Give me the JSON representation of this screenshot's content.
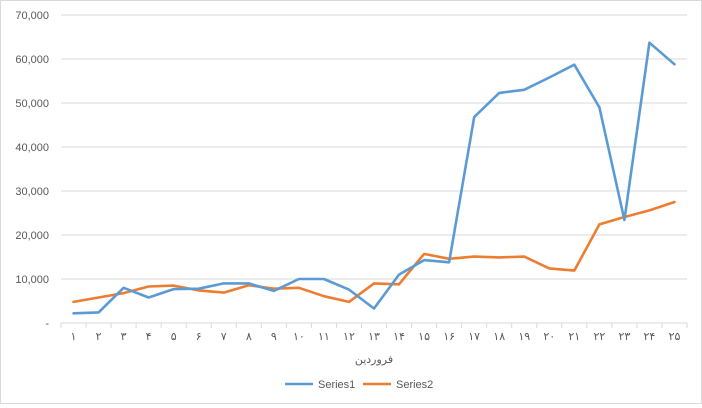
{
  "chart_data": {
    "type": "line",
    "title": "",
    "xlabel": "فروردین",
    "ylabel": "",
    "ylim": [
      0,
      70000
    ],
    "yticks": [
      0,
      10000,
      20000,
      30000,
      40000,
      50000,
      60000,
      70000
    ],
    "ytick_labels": [
      "-",
      "10,000",
      "20,000",
      "30,000",
      "40,000",
      "50,000",
      "60,000",
      "70,000"
    ],
    "categories": [
      "۱",
      "۲",
      "۳",
      "۴",
      "۵",
      "۶",
      "۷",
      "۸",
      "۹",
      "۱۰",
      "۱۱",
      "۱۲",
      "۱۳",
      "۱۴",
      "۱۵",
      "۱۶",
      "۱۷",
      "۱۸",
      "۱۹",
      "۲۰",
      "۲۱",
      "۲۲",
      "۲۳",
      "۲۴",
      "۲۵"
    ],
    "grid": true,
    "legend_position": "bottom",
    "series": [
      {
        "name": "Series1",
        "color": "#5b9bd5",
        "values": [
          2200,
          2400,
          8000,
          5800,
          7700,
          7800,
          9000,
          9000,
          7300,
          10000,
          10000,
          7600,
          3300,
          11000,
          14300,
          13800,
          46800,
          52300,
          53000,
          55800,
          58700,
          49000,
          23400,
          63700,
          58800
        ]
      },
      {
        "name": "Series2",
        "color": "#ed7d31",
        "values": [
          4800,
          5800,
          6800,
          8300,
          8500,
          7400,
          6900,
          8600,
          7800,
          8000,
          6100,
          4800,
          9000,
          8800,
          15700,
          14600,
          15100,
          14900,
          15100,
          12400,
          11900,
          22400,
          24100,
          25600,
          27500
        ]
      }
    ]
  }
}
